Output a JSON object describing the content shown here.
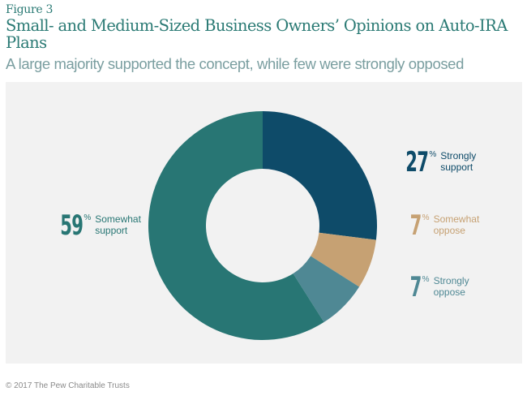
{
  "header": {
    "figure_label": "Figure 3",
    "title": "Small- and Medium-Sized Business Owners’ Opinions on Auto-IRA Plans",
    "subtitle": "A large majority supported the concept, while few were strongly opposed"
  },
  "labels": [
    {
      "value": "27",
      "pct": "%",
      "line1": "Strongly",
      "line2": "support",
      "color": "#0e4b69"
    },
    {
      "value": "7",
      "pct": "%",
      "line1": "Somewhat",
      "line2": "oppose",
      "color": "#c6a173"
    },
    {
      "value": "7",
      "pct": "%",
      "line1": "Strongly",
      "line2": "oppose",
      "color": "#4f8894"
    },
    {
      "value": "59",
      "pct": "%",
      "line1": "Somewhat",
      "line2": "support",
      "color": "#287674"
    }
  ],
  "footer": {
    "copyright": "© 2017 The Pew Charitable Trusts"
  },
  "chart_data": {
    "type": "pie",
    "subtype": "donut",
    "title": "Small- and Medium-Sized Business Owners’ Opinions on Auto-IRA Plans",
    "subtitle": "A large majority supported the concept, while few were strongly opposed",
    "categories": [
      "Strongly support",
      "Somewhat oppose",
      "Strongly oppose",
      "Somewhat support"
    ],
    "values": [
      27,
      7,
      7,
      59
    ],
    "unit": "%",
    "colors": [
      "#0e4b69",
      "#c6a173",
      "#4f8894",
      "#287674"
    ],
    "start_angle": "12 o'clock, clockwise",
    "legend": "direct labels"
  }
}
